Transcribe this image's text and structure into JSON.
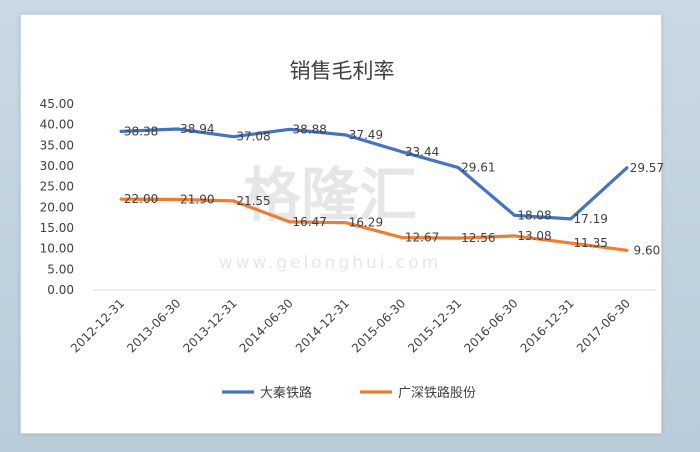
{
  "chart_data": {
    "type": "line",
    "title": "销售毛利率",
    "xlabel": "",
    "ylabel": "",
    "categories": [
      "2012-12-31",
      "2013-06-30",
      "2013-12-31",
      "2014-06-30",
      "2014-12-31",
      "2015-06-30",
      "2015-12-31",
      "2016-06-30",
      "2016-12-31",
      "2017-06-30"
    ],
    "ylim": [
      0,
      45
    ],
    "y_ticks": [
      "0.00",
      "5.00",
      "10.00",
      "15.00",
      "20.00",
      "25.00",
      "30.00",
      "35.00",
      "40.00",
      "45.00"
    ],
    "grid": false,
    "legend_position": "bottom",
    "series": [
      {
        "name": "大秦铁路",
        "color": "#4472c4",
        "values": [
          38.38,
          38.94,
          37.08,
          38.88,
          37.49,
          33.44,
          29.61,
          18.08,
          17.19,
          29.57
        ],
        "labels": [
          "38.38",
          "38.94",
          "37.08",
          "38.88",
          "37.49",
          "33.44",
          "29.61",
          "18.08",
          "17.19",
          "29.57"
        ]
      },
      {
        "name": "广深铁路股份",
        "color": "#ed7d31",
        "values": [
          22.0,
          21.9,
          21.55,
          16.47,
          16.29,
          12.67,
          12.56,
          13.08,
          11.35,
          9.6
        ],
        "labels": [
          "22.00",
          "21.90",
          "21.55",
          "16.47",
          "16.29",
          "12.67",
          "12.56",
          "13.08",
          "11.35",
          "9.60"
        ]
      }
    ]
  },
  "watermark": {
    "text": "格隆汇",
    "url_text": "www.gelonghui.com"
  }
}
